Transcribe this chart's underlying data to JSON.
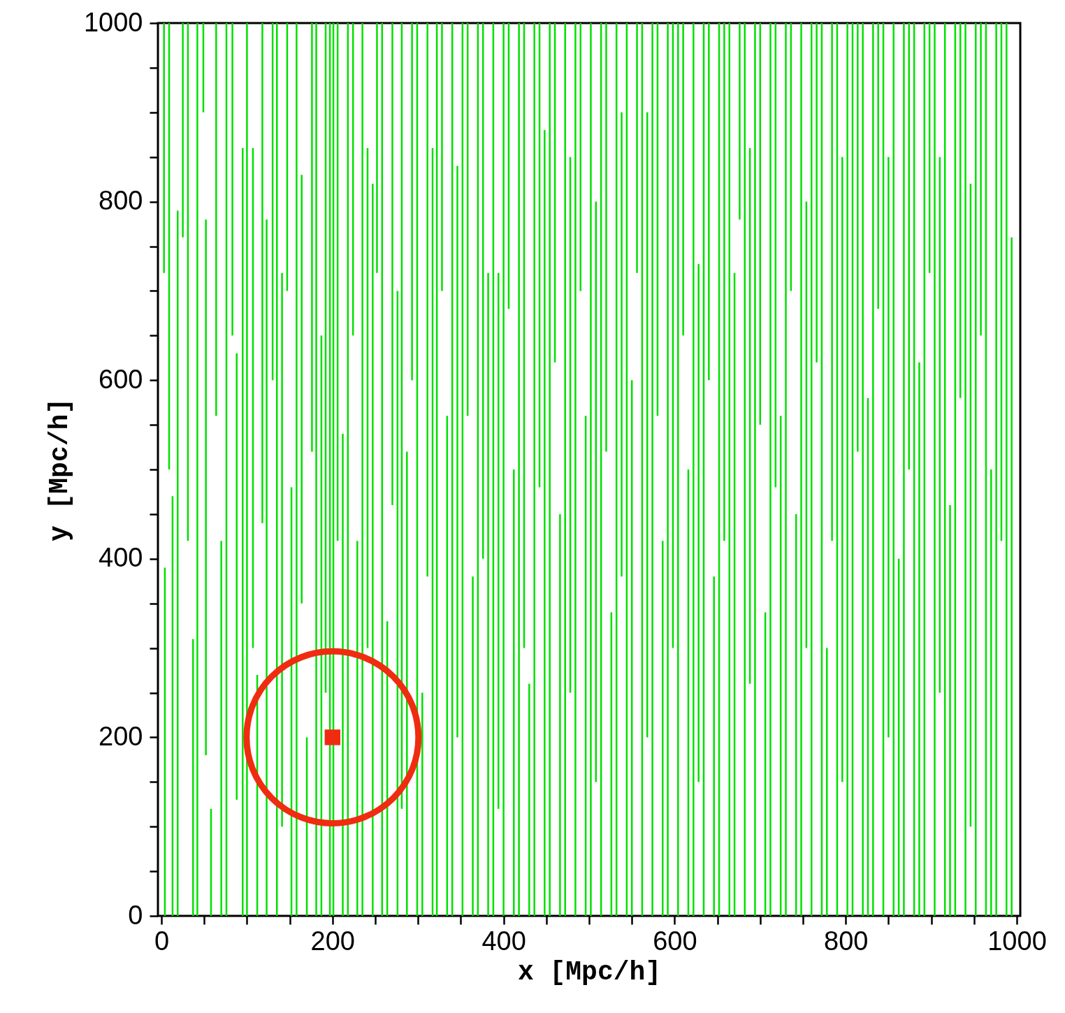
{
  "chart_data": {
    "type": "bar",
    "xlabel": "x [Mpc/h]",
    "ylabel": "y [Mpc/h]",
    "xlim": [
      0,
      1000
    ],
    "ylim": [
      0,
      1000
    ],
    "xticks": [
      0,
      {
        "value": 50,
        "label": null
      },
      {
        "value": 100,
        "label": null
      },
      {
        "value": 150,
        "label": null
      },
      200,
      {
        "value": 250,
        "label": null
      },
      {
        "value": 300,
        "label": null
      },
      {
        "value": 350,
        "label": null
      },
      400,
      {
        "value": 450,
        "label": null
      },
      {
        "value": 500,
        "label": null
      },
      {
        "value": 550,
        "label": null
      },
      600,
      {
        "value": 650,
        "label": null
      },
      {
        "value": 700,
        "label": null
      },
      {
        "value": 750,
        "label": null
      },
      800,
      {
        "value": 850,
        "label": null
      },
      {
        "value": 900,
        "label": null
      },
      {
        "value": 950,
        "label": null
      },
      1000
    ],
    "yticks": [
      0,
      {
        "value": 50,
        "label": null
      },
      {
        "value": 100,
        "label": null
      },
      {
        "value": 150,
        "label": null
      },
      200,
      {
        "value": 250,
        "label": null
      },
      {
        "value": 300,
        "label": null
      },
      {
        "value": 350,
        "label": null
      },
      400,
      {
        "value": 450,
        "label": null
      },
      {
        "value": 500,
        "label": null
      },
      {
        "value": 550,
        "label": null
      },
      600,
      {
        "value": 650,
        "label": null
      },
      {
        "value": 700,
        "label": null
      },
      {
        "value": 750,
        "label": null
      },
      800,
      {
        "value": 850,
        "label": null
      },
      {
        "value": 900,
        "label": null
      },
      {
        "value": 950,
        "label": null
      },
      1000
    ],
    "grid": false,
    "series": [
      {
        "color": "#00e000",
        "x": [
          3,
          4,
          9,
          13,
          19,
          25,
          31,
          37,
          42,
          49,
          52,
          58,
          64,
          70,
          76,
          83,
          88,
          95,
          100,
          107,
          112,
          118,
          123,
          130,
          135,
          141,
          147,
          152,
          158,
          164,
          170,
          176,
          181,
          187,
          192,
          197,
          201,
          206,
          212,
          218,
          224,
          229,
          235,
          241,
          247,
          252,
          258,
          264,
          270,
          276,
          281,
          287,
          293,
          299,
          305,
          311,
          317,
          322,
          328,
          334,
          340,
          346,
          352,
          358,
          364,
          370,
          376,
          382,
          388,
          394,
          400,
          406,
          412,
          418,
          424,
          430,
          436,
          442,
          448,
          454,
          460,
          466,
          472,
          478,
          484,
          490,
          496,
          502,
          508,
          514,
          520,
          526,
          532,
          538,
          544,
          550,
          556,
          562,
          568,
          574,
          580,
          586,
          592,
          598,
          604,
          610,
          616,
          622,
          628,
          634,
          640,
          646,
          652,
          658,
          664,
          670,
          676,
          682,
          688,
          694,
          700,
          706,
          712,
          718,
          724,
          730,
          736,
          742,
          748,
          754,
          760,
          766,
          772,
          778,
          784,
          790,
          796,
          802,
          808,
          814,
          820,
          826,
          832,
          838,
          844,
          850,
          856,
          862,
          868,
          874,
          880,
          886,
          892,
          898,
          904,
          910,
          916,
          922,
          928,
          934,
          940,
          946,
          952,
          958,
          964,
          970,
          976,
          982,
          988,
          994
        ],
        "base": [
          720,
          0,
          500,
          0,
          0,
          760,
          420,
          0,
          0,
          900,
          180,
          0,
          560,
          0,
          0,
          650,
          130,
          0,
          0,
          300,
          0,
          440,
          0,
          600,
          0,
          100,
          700,
          0,
          0,
          350,
          0,
          520,
          0,
          0,
          250,
          0,
          0,
          420,
          0,
          0,
          650,
          0,
          0,
          300,
          0,
          720,
          0,
          0,
          460,
          0,
          120,
          0,
          600,
          0,
          0,
          380,
          0,
          0,
          700,
          0,
          0,
          200,
          0,
          560,
          0,
          0,
          400,
          0,
          0,
          120,
          0,
          680,
          0,
          0,
          300,
          0,
          0,
          480,
          0,
          0,
          620,
          0,
          0,
          250,
          0,
          700,
          0,
          0,
          150,
          0,
          520,
          0,
          0,
          380,
          0,
          0,
          720,
          0,
          200,
          0,
          560,
          0,
          0,
          300,
          0,
          650,
          0,
          0,
          150,
          0,
          600,
          0,
          0,
          420,
          0,
          0,
          780,
          0,
          260,
          0,
          550,
          0,
          0,
          480,
          0,
          0,
          700,
          0,
          0,
          300,
          0,
          620,
          0,
          0,
          420,
          0,
          150,
          0,
          0,
          520,
          0,
          0,
          0,
          680,
          0,
          200,
          0,
          0,
          0,
          500,
          0,
          0,
          0,
          720,
          0,
          250,
          0,
          0,
          0,
          580,
          0,
          100,
          0,
          650,
          0,
          0,
          0,
          420,
          0,
          0
        ],
        "values": [
          280,
          390,
          500,
          470,
          790,
          240,
          580,
          310,
          1000,
          100,
          600,
          120,
          440,
          420,
          1000,
          350,
          500,
          860,
          1000,
          560,
          270,
          560,
          780,
          400,
          1000,
          620,
          300,
          480,
          1000,
          480,
          200,
          480,
          1000,
          650,
          750,
          1000,
          1000,
          580,
          540,
          1000,
          350,
          420,
          1000,
          560,
          820,
          280,
          1000,
          330,
          540,
          700,
          880,
          520,
          400,
          1000,
          250,
          620,
          860,
          1000,
          300,
          560,
          1000,
          640,
          1000,
          440,
          380,
          1000,
          600,
          720,
          1000,
          600,
          1000,
          320,
          500,
          1000,
          700,
          260,
          1000,
          520,
          880,
          1000,
          380,
          450,
          1000,
          600,
          1000,
          300,
          560,
          1000,
          650,
          1000,
          480,
          340,
          1000,
          520,
          1000,
          600,
          280,
          1000,
          700,
          1000,
          440,
          420,
          1000,
          700,
          1000,
          350,
          500,
          1000,
          580,
          1000,
          400,
          380,
          1000,
          580,
          1000,
          720,
          220,
          1000,
          600,
          1000,
          450,
          340,
          1000,
          520,
          560,
          1000,
          300,
          450,
          1000,
          500,
          1000,
          380,
          1000,
          300,
          580,
          1000,
          700,
          1000,
          1000,
          480,
          1000,
          580,
          1000,
          320,
          1000,
          650,
          1000,
          400,
          1000,
          500,
          1000,
          620,
          1000,
          280,
          1000,
          600,
          1000,
          460,
          1000,
          420,
          1000,
          720,
          1000,
          350,
          1000,
          500,
          1000,
          580,
          1000,
          760
        ]
      },
      {
        "type": "scatter",
        "color": "#f02c10",
        "x": [
          200
        ],
        "values": [
          200
        ],
        "marker": "square"
      }
    ]
  }
}
